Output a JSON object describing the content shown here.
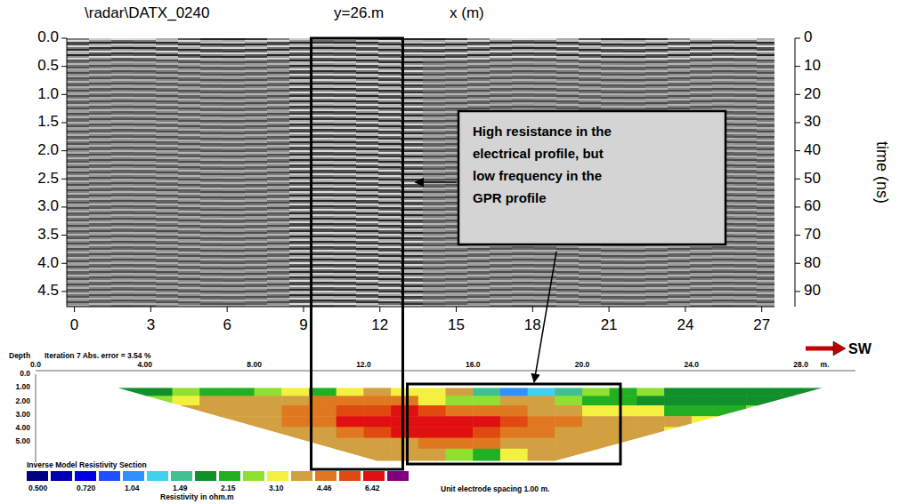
{
  "chart_data": [
    {
      "type": "radargram",
      "title": "\\radar\\DATX_0240",
      "subtitle": "y=26.m",
      "x_label": "x (m)",
      "y2_label": "time (ns)",
      "xlim": [
        -0.3,
        27.5
      ],
      "xticks": [
        0,
        3,
        6,
        9,
        12,
        15,
        18,
        21,
        24,
        27
      ],
      "ylim": [
        0,
        4.77
      ],
      "yticks": [
        {
          "value": 0,
          "label": "0.0"
        },
        0.5,
        {
          "value": 1,
          "label": "1.0"
        },
        1.5,
        {
          "value": 2,
          "label": "2.0"
        },
        2.5,
        {
          "value": 3,
          "label": "3.0"
        },
        3.5,
        {
          "value": 4,
          "label": "4.0"
        },
        4.5
      ],
      "y2lim": [
        0,
        95.4
      ],
      "y2ticks": [
        0,
        10,
        20,
        30,
        40,
        50,
        60,
        70,
        80,
        90
      ],
      "annotation": "High resistance in the electrical profile, but low frequency in the GPR profile"
    },
    {
      "type": "heatmap",
      "title": "Inverse Model Resistivity Section",
      "y_label": "Depth",
      "header": "Iteration 7 Abs. error = 3.54 %",
      "x_unit": "m.",
      "xlim": [
        0,
        30
      ],
      "xticks": [
        {
          "value": 0,
          "label": "0.0"
        },
        {
          "value": 4,
          "label": "4.00"
        },
        {
          "value": 8,
          "label": "8.00"
        },
        {
          "value": 12,
          "label": "12.0"
        },
        {
          "value": 16,
          "label": "16.0"
        },
        {
          "value": 20,
          "label": "20.0"
        },
        {
          "value": 24,
          "label": "24.0"
        },
        {
          "value": 28,
          "label": "28.0"
        }
      ],
      "ylim": [
        0,
        6.5
      ],
      "yticks": [
        {
          "value": 0,
          "label": "0.0"
        },
        {
          "value": 1,
          "label": "1.00"
        },
        {
          "value": 2,
          "label": "2.00"
        },
        {
          "value": 3,
          "label": "3.00"
        },
        {
          "value": 4,
          "label": "4.00"
        },
        {
          "value": 5,
          "label": "5.00"
        }
      ],
      "outline": [
        [
          3,
          1.0
        ],
        [
          28.8,
          1.0
        ],
        [
          19,
          6.4
        ],
        [
          12.5,
          6.4
        ]
      ],
      "cells": [
        {
          "depth": [
            1.0,
            1.6
          ],
          "x_start": 3,
          "values": [
            2.0,
            2.0,
            3.0,
            2.2,
            2.4,
            3.0,
            3.2,
            2.3,
            3.6,
            4.0,
            3.2,
            3.3,
            4.0,
            1.5,
            1.2,
            1.3,
            1.6,
            3.0,
            2.3,
            2.6,
            2.0,
            1.9,
            1.8,
            1.8,
            1.8,
            1.9
          ]
        },
        {
          "depth": [
            1.6,
            2.3
          ],
          "x_start": 4,
          "values": [
            3.0,
            3.6,
            4.0,
            4.0,
            4.0,
            4.2,
            4.5,
            4.6,
            4.6,
            4.5,
            3.4,
            2.8,
            3.0,
            3.8,
            4.0,
            2.6,
            2.3,
            2.2,
            2.0,
            1.9,
            1.9,
            1.9,
            2.0,
            2.1
          ]
        },
        {
          "depth": [
            2.3,
            3.1
          ],
          "x_start": 5,
          "values": [
            3.8,
            4.0,
            4.2,
            4.4,
            4.6,
            5.0,
            5.6,
            6.0,
            7.0,
            6.0,
            5.0,
            4.8,
            4.6,
            4.4,
            3.8,
            3.3,
            3.2,
            3.1,
            2.4,
            2.3,
            2.4,
            2.6
          ]
        },
        {
          "depth": [
            3.1,
            3.9
          ],
          "x_start": 6,
          "values": [
            4.0,
            4.0,
            4.2,
            4.6,
            5.2,
            6.8,
            7.2,
            7.5,
            7.6,
            7.4,
            7.0,
            5.8,
            5.0,
            4.6,
            4.4,
            4.2,
            4.0,
            3.8,
            3.6
          ]
        },
        {
          "depth": [
            3.9,
            4.7
          ],
          "x_start": 8,
          "values": [
            4.0,
            4.2,
            4.4,
            4.6,
            5.6,
            6.8,
            7.0,
            6.8,
            6.0,
            5.2,
            4.8,
            4.4,
            4.2,
            4.0,
            3.8,
            3.6
          ]
        },
        {
          "depth": [
            4.7,
            5.5
          ],
          "x_start": 9,
          "values": [
            4.0,
            4.1,
            4.2,
            4.3,
            4.4,
            4.6,
            4.6,
            4.5,
            4.4,
            4.3,
            4.2,
            4.0,
            3.8
          ]
        },
        {
          "depth": [
            5.5,
            6.4
          ],
          "x_start": 10,
          "values": [
            3.8,
            4.0,
            4.1,
            4.2,
            4.2,
            3.0,
            2.5,
            3.2,
            4.0,
            4.0,
            3.8
          ]
        }
      ],
      "colorbar": {
        "ticks": [
          {
            "value": 0.5,
            "label": "0.500"
          },
          {
            "value": 0.72,
            "label": "0.720"
          },
          1.04,
          1.49,
          2.15,
          {
            "value": 3.1,
            "label": "3.10"
          },
          4.46,
          6.42
        ],
        "colors": [
          "#000080",
          "#0000b0",
          "#0000e0",
          "#2050ff",
          "#3090ff",
          "#40d0f0",
          "#40c090",
          "#108f2a",
          "#22b022",
          "#8fe030",
          "#f4f040",
          "#d2a040",
          "#e07820",
          "#e04a10",
          "#e01010",
          "#800080"
        ]
      },
      "colorbar_label": "Resistivity in ohm.m",
      "note": "Unit electrode spacing 1.00 m.",
      "direction_label": "SW"
    }
  ]
}
